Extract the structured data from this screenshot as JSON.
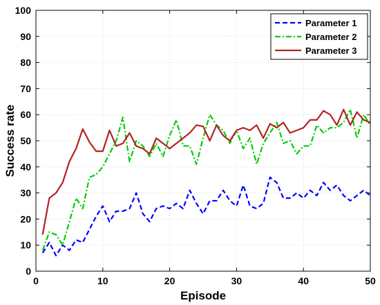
{
  "chart_data": {
    "type": "line",
    "title": "",
    "xlabel": "Episode",
    "ylabel": "Success rate",
    "xlim": [
      0,
      50
    ],
    "ylim": [
      0,
      100
    ],
    "xticks": [
      "0",
      "10",
      "20",
      "30",
      "40",
      "50"
    ],
    "yticks": [
      "0",
      "10",
      "20",
      "30",
      "40",
      "50",
      "60",
      "70",
      "80",
      "90",
      "100"
    ],
    "grid": true,
    "legend_position": "top-right",
    "x": [
      1,
      2,
      3,
      4,
      5,
      6,
      7,
      8,
      9,
      10,
      11,
      12,
      13,
      14,
      15,
      16,
      17,
      18,
      19,
      20,
      21,
      22,
      23,
      24,
      25,
      26,
      27,
      28,
      29,
      30,
      31,
      32,
      33,
      34,
      35,
      36,
      37,
      38,
      39,
      40,
      41,
      42,
      43,
      44,
      45,
      46,
      47,
      48,
      49,
      50
    ],
    "series": [
      {
        "name": "Parameter 1",
        "color": "#0000ff",
        "style": "dashed",
        "values": [
          7,
          11,
          6,
          10,
          8,
          12,
          11,
          16,
          21,
          25,
          19,
          23,
          23,
          24,
          30,
          22,
          19,
          24,
          25,
          24,
          26,
          24,
          31,
          26,
          22,
          27,
          27,
          31,
          27,
          25,
          33,
          25,
          24,
          26,
          36,
          34,
          28,
          28,
          30,
          28,
          31,
          29,
          34,
          31,
          33,
          29,
          27,
          29,
          31,
          29
        ]
      },
      {
        "name": "Parameter 2",
        "color": "#00cc00",
        "style": "dashdot",
        "values": [
          8,
          15,
          14,
          10,
          19,
          28,
          24,
          36,
          37,
          40,
          45,
          50,
          59,
          42,
          50,
          48,
          44,
          49,
          44,
          52,
          58,
          48,
          48,
          41,
          51,
          60,
          56,
          54,
          49,
          54,
          47,
          51,
          41,
          49,
          53,
          57,
          49,
          50,
          45,
          48,
          48,
          56,
          53,
          55,
          55,
          57,
          62,
          51,
          60,
          56
        ]
      },
      {
        "name": "Parameter 3",
        "color": "#b22222",
        "style": "solid",
        "values": [
          14,
          28,
          30,
          34,
          42,
          47,
          54.5,
          49.5,
          46,
          46,
          54,
          48,
          49,
          53,
          48,
          47,
          45,
          51,
          49,
          47,
          49,
          51,
          53,
          56,
          55.5,
          50,
          56,
          52,
          50,
          54,
          55,
          54,
          56,
          51,
          56.5,
          55,
          57,
          53,
          54,
          55,
          58,
          58,
          61.5,
          60,
          56,
          62,
          56,
          61,
          58,
          57
        ]
      }
    ]
  }
}
